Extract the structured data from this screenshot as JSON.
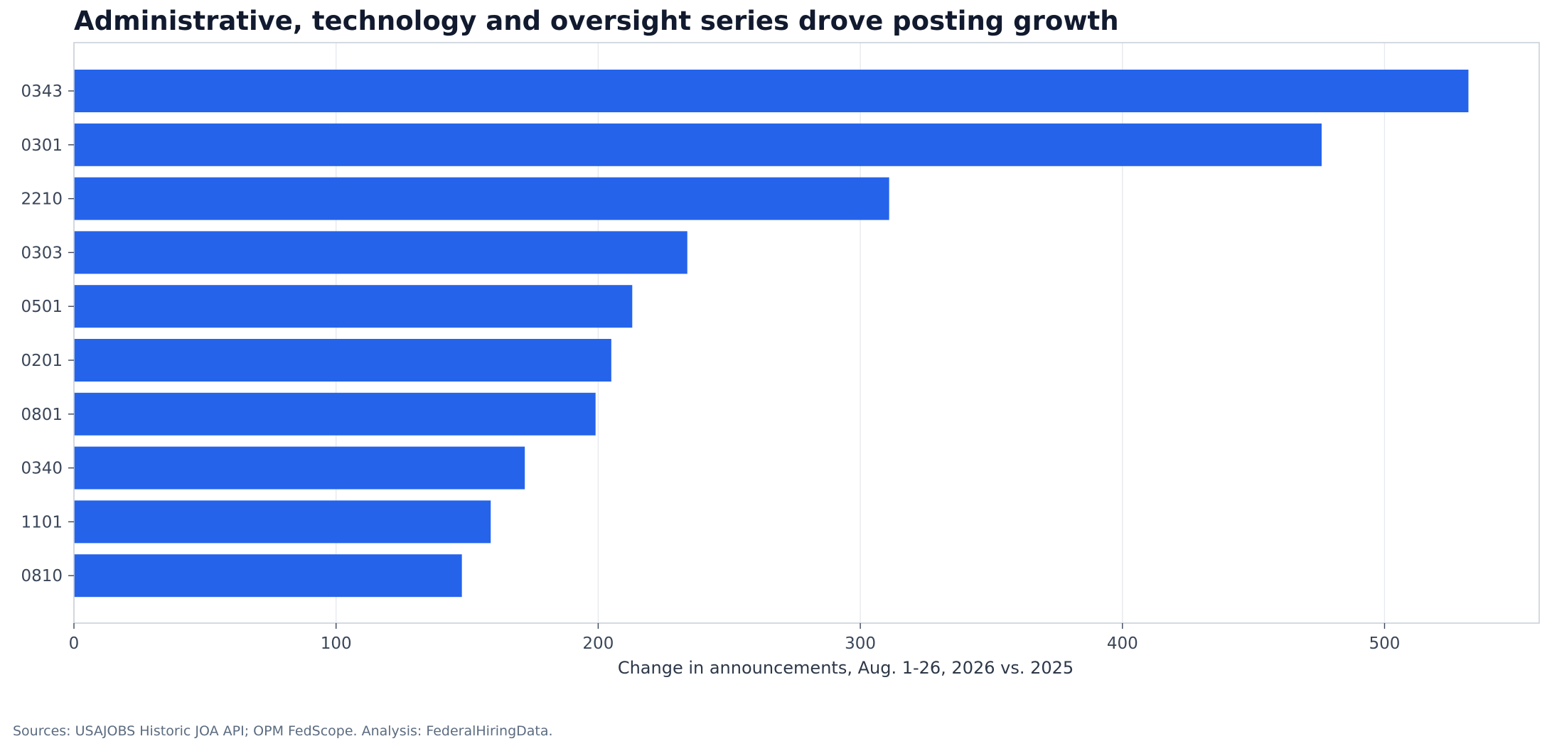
{
  "chart_data": {
    "type": "bar",
    "orientation": "horizontal",
    "title": "Administrative, technology and oversight series drove posting growth",
    "xlabel": "Change in announcements, Aug. 1-26, 2026 vs. 2025",
    "ylabel": "",
    "categories": [
      "0343",
      "0301",
      "2210",
      "0303",
      "0501",
      "0201",
      "0801",
      "0340",
      "1101",
      "0810"
    ],
    "values": [
      532,
      476,
      311,
      234,
      213,
      205,
      199,
      172,
      159,
      148
    ],
    "xlim": [
      0,
      559
    ],
    "xticks": [
      0,
      100,
      200,
      300,
      400,
      500
    ],
    "grid": "vertical",
    "legend": "none",
    "bar_color": "#2563eb"
  },
  "footer": {
    "source": "Sources: USAJOBS Historic JOA API; OPM FedScope. Analysis: FederalHiringData."
  },
  "colors": {
    "title": "#111a2e",
    "grid": "#e6e9ee",
    "frame": "#c9d0d9",
    "tick_text": "#3a4658"
  }
}
